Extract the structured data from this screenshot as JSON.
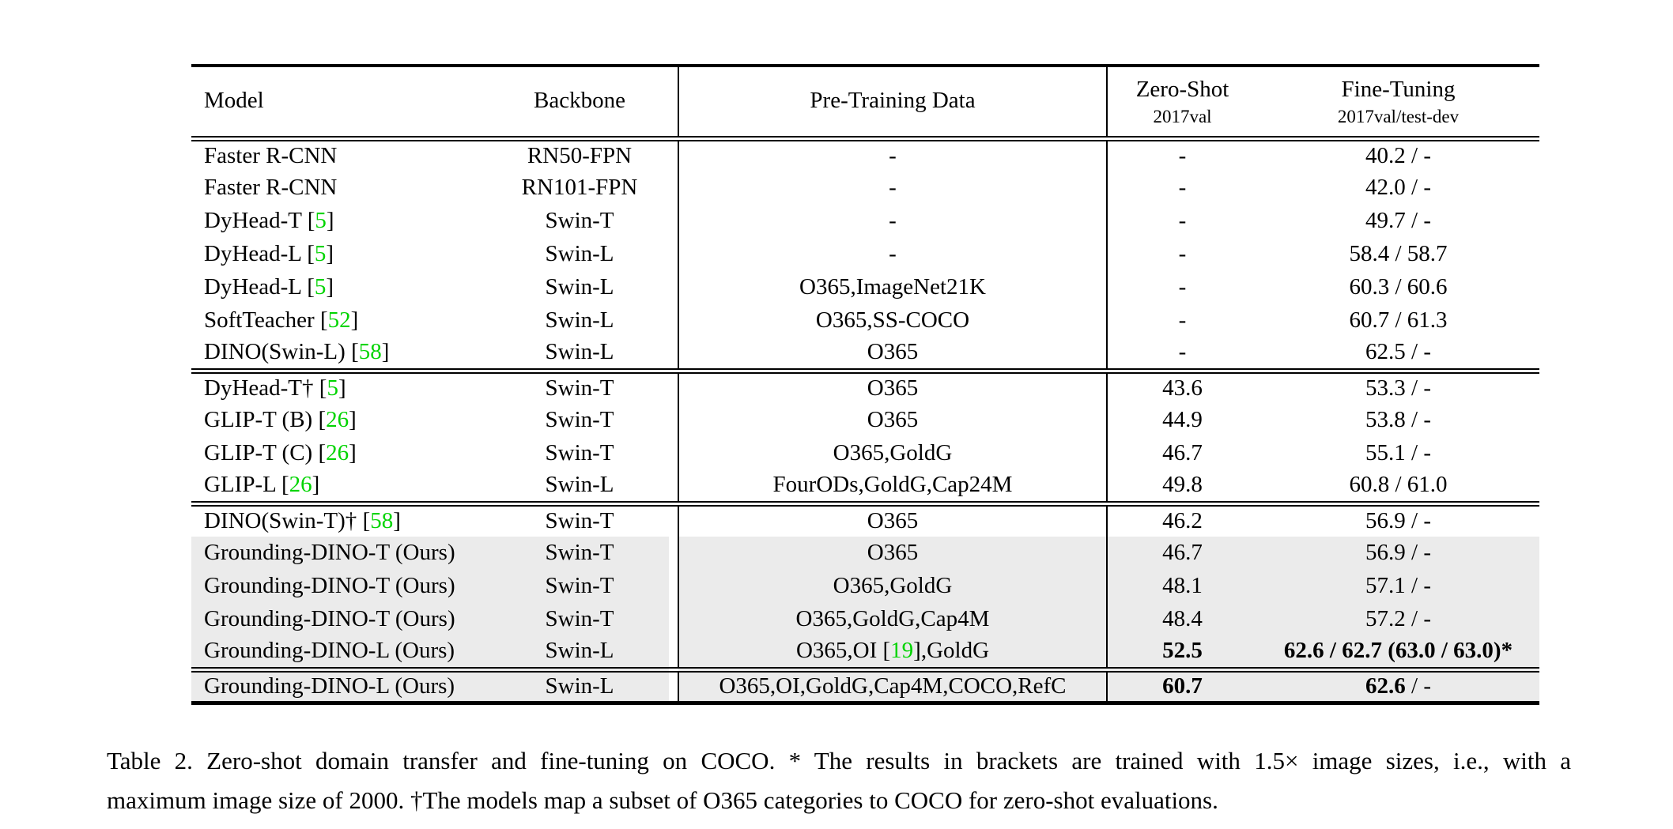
{
  "colors": {
    "citation_green": "#00d400",
    "highlight_gray": "#ebebeb",
    "ink": "#000000"
  },
  "table": {
    "header": {
      "model": "Model",
      "backbone": "Backbone",
      "pretrain": "Pre-Training Data",
      "zeroshot_line1": "Zero-Shot",
      "zeroshot_line2": "2017val",
      "finetune_line1": "Fine-Tuning",
      "finetune_line2": "2017val/test-dev"
    },
    "sections": [
      {
        "rows": [
          {
            "model": "Faster R-CNN",
            "cite": null,
            "backbone": "RN50-FPN",
            "pretrain": "-",
            "zeroshot": "-",
            "finetune": "40.2 / -"
          },
          {
            "model": "Faster R-CNN",
            "cite": null,
            "backbone": "RN101-FPN",
            "pretrain": "-",
            "zeroshot": "-",
            "finetune": "42.0 / -"
          },
          {
            "model": "DyHead-T",
            "cite": "5",
            "backbone": "Swin-T",
            "pretrain": "-",
            "zeroshot": "-",
            "finetune": "49.7 / -"
          },
          {
            "model": "DyHead-L",
            "cite": "5",
            "backbone": "Swin-L",
            "pretrain": "-",
            "zeroshot": "-",
            "finetune": "58.4 / 58.7"
          },
          {
            "model": "DyHead-L",
            "cite": "5",
            "backbone": "Swin-L",
            "pretrain": "O365,ImageNet21K",
            "zeroshot": "-",
            "finetune": "60.3 / 60.6"
          },
          {
            "model": "SoftTeacher",
            "cite": "52",
            "backbone": "Swin-L",
            "pretrain": "O365,SS-COCO",
            "zeroshot": "-",
            "finetune": "60.7 / 61.3"
          },
          {
            "model": "DINO(Swin-L)",
            "cite": "58",
            "backbone": "Swin-L",
            "pretrain": "O365",
            "zeroshot": "-",
            "finetune": "62.5 / -"
          }
        ]
      },
      {
        "rows": [
          {
            "model": "DyHead-T†",
            "cite": "5",
            "backbone": "Swin-T",
            "pretrain": "O365",
            "zeroshot": "43.6",
            "finetune": "53.3 / -"
          },
          {
            "model": "GLIP-T (B)",
            "cite": "26",
            "backbone": "Swin-T",
            "pretrain": "O365",
            "zeroshot": "44.9",
            "finetune": "53.8 / -"
          },
          {
            "model": "GLIP-T (C)",
            "cite": "26",
            "backbone": "Swin-T",
            "pretrain": "O365,GoldG",
            "zeroshot": "46.7",
            "finetune": "55.1 / -"
          },
          {
            "model": "GLIP-L",
            "cite": "26",
            "backbone": "Swin-L",
            "pretrain": "FourODs,GoldG,Cap24M",
            "zeroshot": "49.8",
            "finetune": "60.8 / 61.0"
          }
        ]
      },
      {
        "rows": [
          {
            "model": "DINO(Swin-T)†",
            "cite": "58",
            "backbone": "Swin-T",
            "pretrain": "O365",
            "zeroshot": "46.2",
            "finetune": "56.9 / -"
          },
          {
            "model": "Grounding-DINO-T (Ours)",
            "cite": null,
            "backbone": "Swin-T",
            "pretrain": "O365",
            "zeroshot": "46.7",
            "finetune": "56.9 / -",
            "highlight": true
          },
          {
            "model": "Grounding-DINO-T (Ours)",
            "cite": null,
            "backbone": "Swin-T",
            "pretrain": "O365,GoldG",
            "zeroshot": "48.1",
            "finetune": "57.1 / -",
            "highlight": true
          },
          {
            "model": "Grounding-DINO-T (Ours)",
            "cite": null,
            "backbone": "Swin-T",
            "pretrain": "O365,GoldG,Cap4M",
            "zeroshot": "48.4",
            "finetune": "57.2 / -",
            "highlight": true
          },
          {
            "model": "Grounding-DINO-L (Ours)",
            "cite": null,
            "backbone": "Swin-L",
            "pretrain_parts": [
              {
                "t": "O365,OI ["
              },
              {
                "t": "19",
                "green": true
              },
              {
                "t": "],GoldG"
              }
            ],
            "zeroshot": "52.5",
            "zeroshot_bold": true,
            "finetune": "62.6 / 62.7 (63.0 / 63.0)*",
            "finetune_bold": true,
            "highlight": true
          }
        ]
      },
      {
        "rows": [
          {
            "model": "Grounding-DINO-L (Ours)",
            "cite": null,
            "backbone": "Swin-L",
            "pretrain": "O365,OI,GoldG,Cap4M,COCO,RefC",
            "zeroshot": "60.7",
            "zeroshot_bold": true,
            "finetune_parts": [
              {
                "t": "62.6",
                "b": true
              },
              {
                "t": " / -",
                "b": false
              }
            ],
            "highlight": true
          }
        ]
      }
    ]
  },
  "caption": {
    "line1": "Table 2.  Zero-shot domain transfer and fine-tuning on COCO. * The results in brackets are trained with 1.5× image sizes, i.e., with a",
    "line2": "maximum image size of 2000. †The models map a subset of O365 categories to COCO for zero-shot evaluations."
  }
}
